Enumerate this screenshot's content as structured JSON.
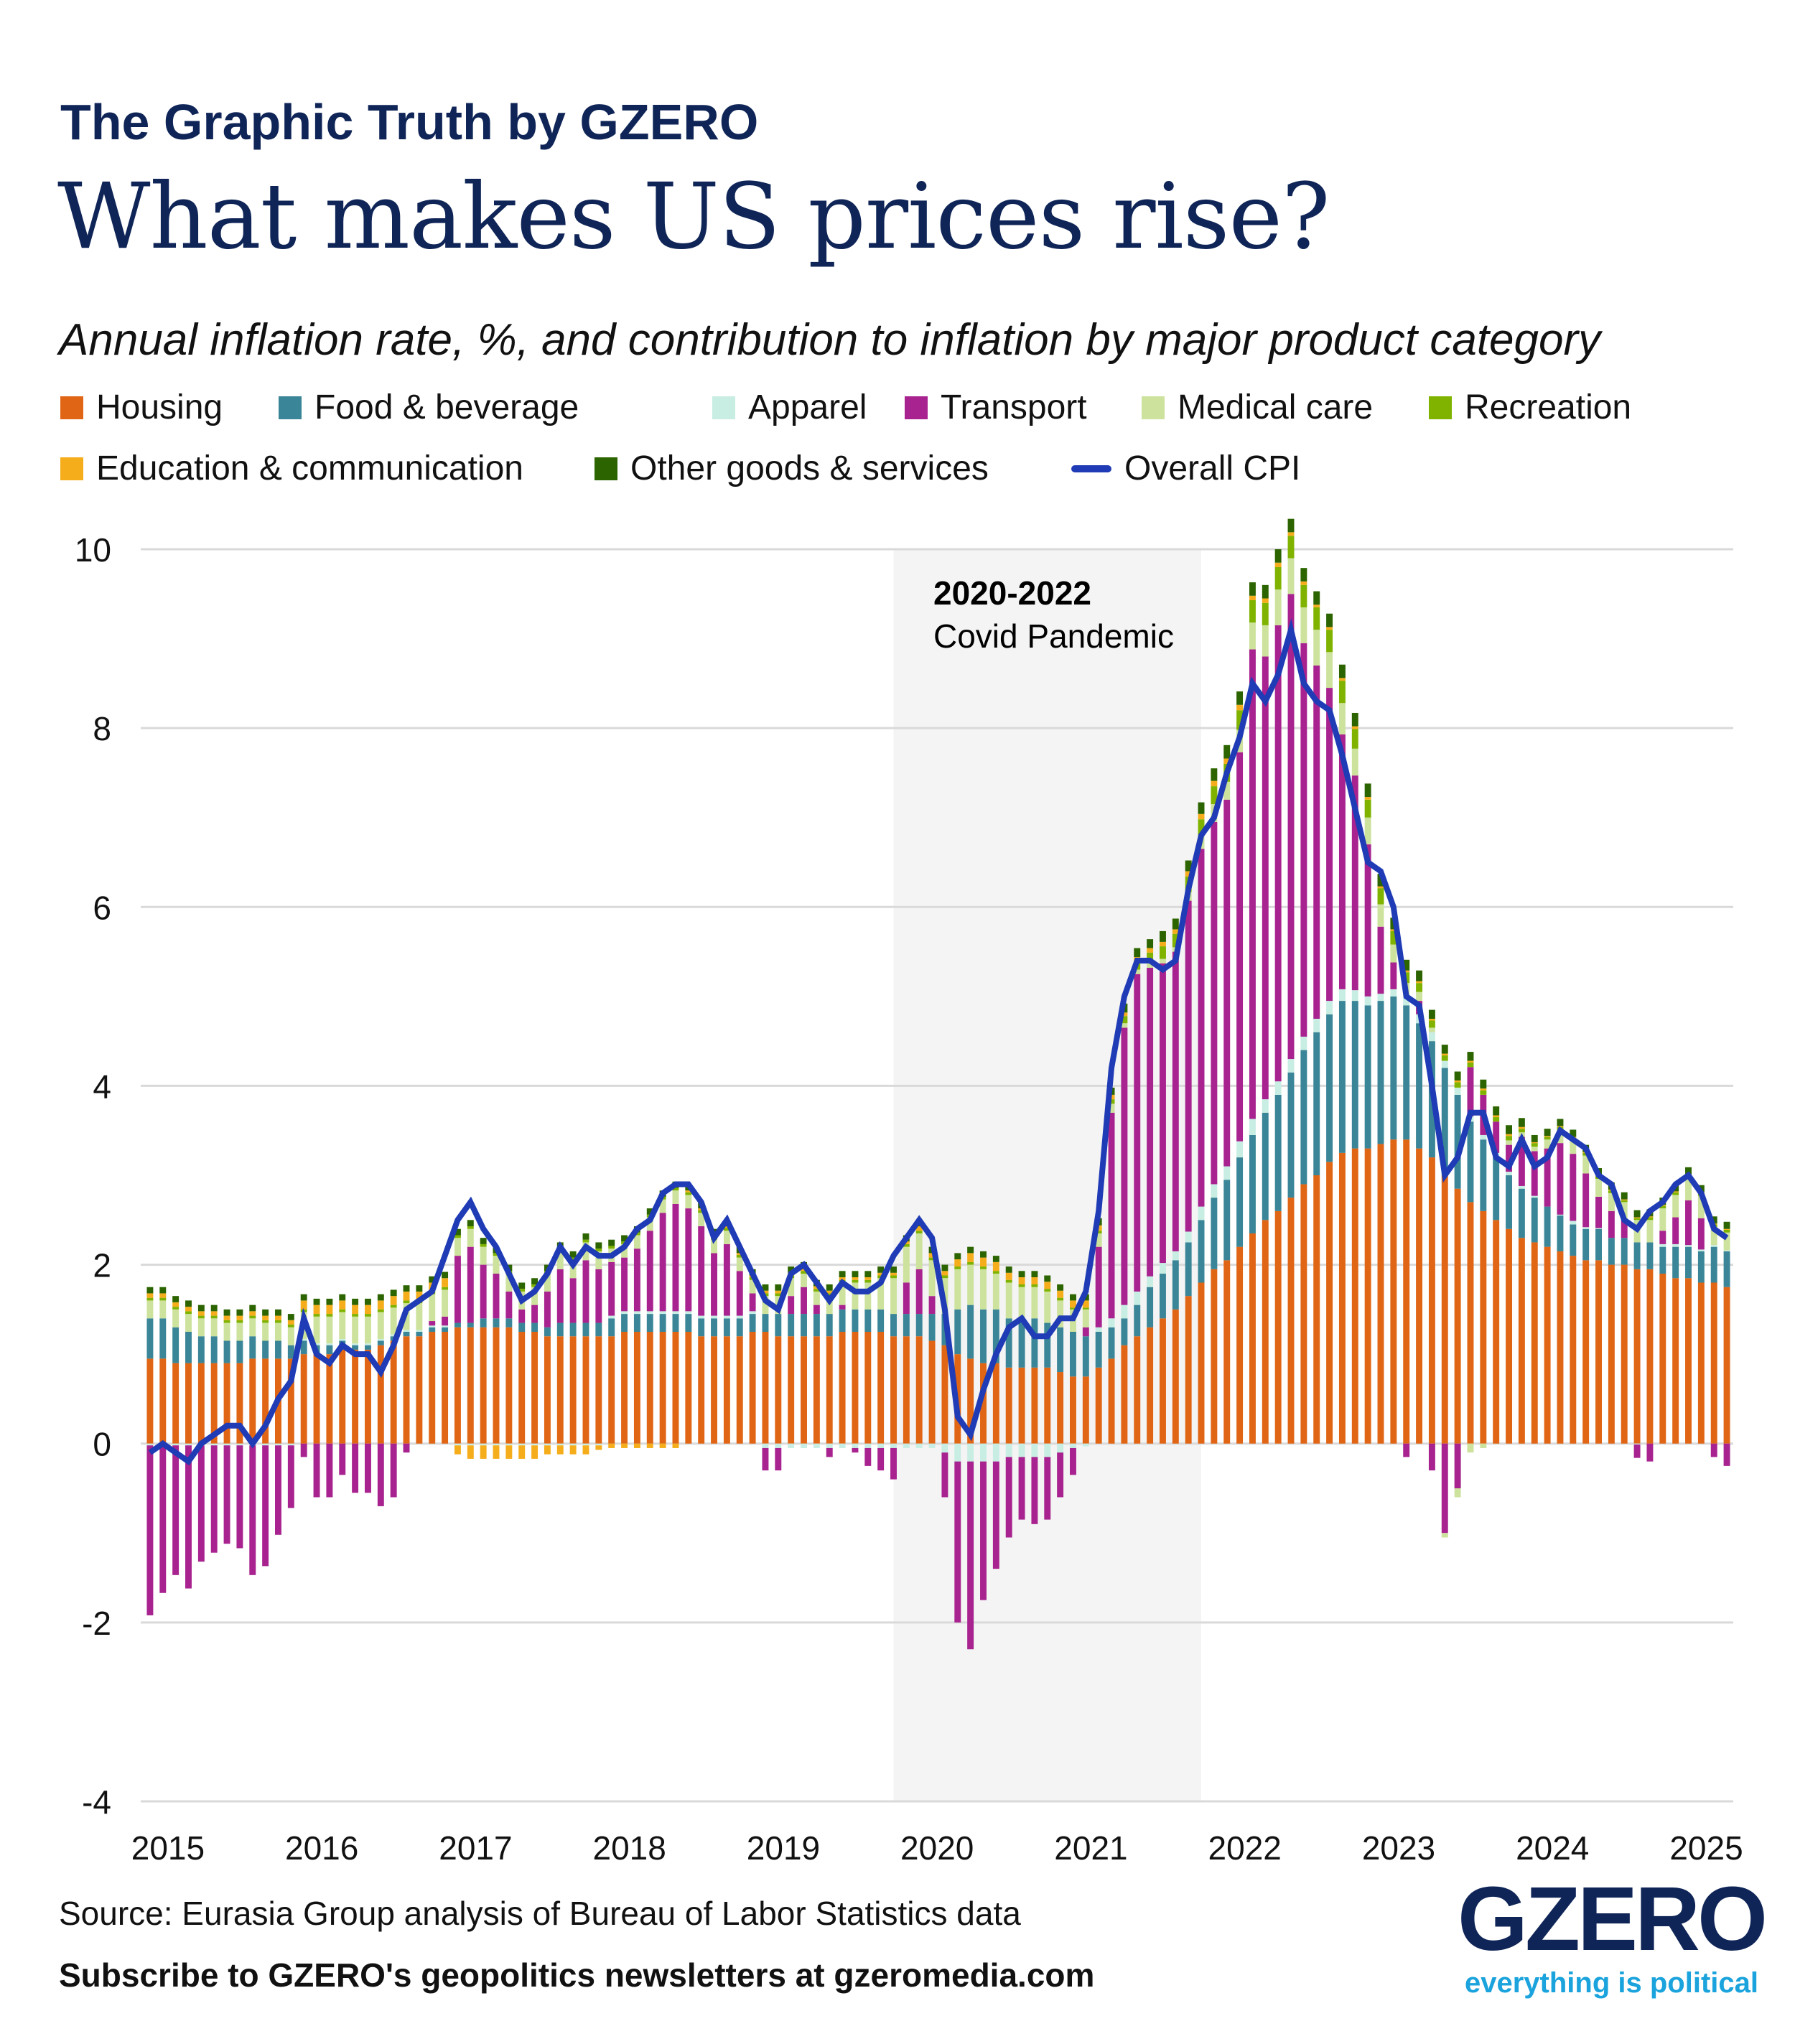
{
  "header": {
    "brand": "The Graphic Truth by GZERO",
    "title": "What makes US prices rise?",
    "subtitle": "Annual inflation rate, %, and contribution to inflation by major product category"
  },
  "footer": {
    "source": "Source: Eurasia Group analysis of Bureau of Labor Statistics data",
    "subscribe": "Subscribe to GZERO's geopolitics newsletters at gzeromedia.com",
    "logo": "GZERO",
    "tagline": "everything is political"
  },
  "chart_data": {
    "type": "bar",
    "stacked": true,
    "title": "What makes US prices rise?",
    "subtitle": "Annual inflation rate, %, and contribution to inflation by major product category",
    "ylim": [
      -4,
      10
    ],
    "yticks": [
      "10",
      "8",
      "6",
      "4",
      "2",
      "0",
      "-2",
      "-4"
    ],
    "ytick_values": [
      10,
      8,
      6,
      4,
      2,
      0,
      -2,
      -4
    ],
    "grid": true,
    "legend": "top",
    "x_start": "2015-01",
    "x_end": "2025-04",
    "xtick_labels": [
      "2015",
      "2016",
      "2017",
      "2018",
      "2019",
      "2020",
      "2021",
      "2022",
      "2023",
      "2024",
      "2025"
    ],
    "annotation": {
      "title": "2020-2022",
      "text": "Covid Pandemic",
      "shade_from": "2020-01",
      "shade_to": "2022-01",
      "shade_color": "#f4f4f4"
    },
    "series": [
      {
        "name": "Housing",
        "color": "#e06514",
        "values": [
          0.95,
          0.95,
          0.9,
          0.9,
          0.9,
          0.9,
          0.9,
          0.9,
          0.95,
          0.95,
          0.95,
          0.95,
          1.0,
          1.0,
          1.0,
          1.05,
          1.05,
          1.05,
          1.1,
          1.15,
          1.2,
          1.2,
          1.25,
          1.25,
          1.3,
          1.3,
          1.3,
          1.3,
          1.3,
          1.25,
          1.25,
          1.2,
          1.2,
          1.2,
          1.2,
          1.2,
          1.2,
          1.25,
          1.25,
          1.25,
          1.25,
          1.25,
          1.25,
          1.2,
          1.2,
          1.2,
          1.2,
          1.25,
          1.25,
          1.2,
          1.2,
          1.2,
          1.2,
          1.2,
          1.25,
          1.25,
          1.25,
          1.25,
          1.2,
          1.2,
          1.2,
          1.15,
          1.1,
          1.0,
          0.95,
          0.9,
          0.9,
          0.85,
          0.85,
          0.85,
          0.85,
          0.8,
          0.75,
          0.75,
          0.85,
          0.95,
          1.1,
          1.2,
          1.3,
          1.4,
          1.5,
          1.65,
          1.8,
          1.95,
          2.05,
          2.2,
          2.35,
          2.5,
          2.6,
          2.75,
          2.9,
          3.0,
          3.15,
          3.25,
          3.3,
          3.3,
          3.35,
          3.4,
          3.4,
          3.3,
          3.2,
          3.0,
          2.85,
          2.7,
          2.6,
          2.5,
          2.4,
          2.3,
          2.25,
          2.2,
          2.15,
          2.1,
          2.05,
          2.05,
          2.0,
          2.0,
          1.95,
          1.95,
          1.9,
          1.85,
          1.85,
          1.8,
          1.8,
          1.75
        ]
      },
      {
        "name": "Food & beverage",
        "color": "#3a8597",
        "values": [
          0.45,
          0.45,
          0.4,
          0.35,
          0.3,
          0.3,
          0.25,
          0.25,
          0.25,
          0.2,
          0.2,
          0.15,
          0.15,
          0.1,
          0.1,
          0.1,
          0.05,
          0.05,
          0.05,
          0.05,
          0.05,
          0.05,
          0.05,
          0.05,
          0.05,
          0.05,
          0.1,
          0.1,
          0.1,
          0.1,
          0.1,
          0.1,
          0.15,
          0.15,
          0.15,
          0.15,
          0.2,
          0.2,
          0.2,
          0.2,
          0.2,
          0.2,
          0.2,
          0.2,
          0.2,
          0.2,
          0.2,
          0.2,
          0.2,
          0.25,
          0.25,
          0.25,
          0.25,
          0.25,
          0.25,
          0.25,
          0.25,
          0.25,
          0.25,
          0.25,
          0.25,
          0.3,
          0.35,
          0.5,
          0.6,
          0.6,
          0.6,
          0.55,
          0.55,
          0.55,
          0.5,
          0.5,
          0.5,
          0.45,
          0.4,
          0.35,
          0.3,
          0.35,
          0.45,
          0.5,
          0.55,
          0.6,
          0.7,
          0.8,
          0.9,
          1.0,
          1.1,
          1.2,
          1.3,
          1.4,
          1.5,
          1.6,
          1.65,
          1.7,
          1.65,
          1.6,
          1.6,
          1.6,
          1.5,
          1.4,
          1.3,
          1.2,
          1.05,
          0.9,
          0.8,
          0.7,
          0.6,
          0.55,
          0.5,
          0.45,
          0.4,
          0.35,
          0.35,
          0.35,
          0.3,
          0.3,
          0.3,
          0.3,
          0.3,
          0.35,
          0.35,
          0.35,
          0.4,
          0.4
        ]
      },
      {
        "name": "Apparel",
        "color": "#c8ede3",
        "values": [
          -0.02,
          -0.02,
          -0.02,
          -0.02,
          -0.02,
          -0.02,
          -0.02,
          -0.02,
          -0.02,
          -0.02,
          -0.02,
          -0.02,
          0.02,
          0.02,
          0.02,
          0.02,
          0.02,
          0.02,
          0.02,
          0.02,
          0.02,
          0.02,
          0.02,
          0.02,
          -0.02,
          -0.02,
          -0.02,
          -0.02,
          -0.02,
          -0.02,
          -0.02,
          -0.02,
          -0.02,
          -0.02,
          -0.02,
          -0.02,
          0.03,
          0.03,
          0.03,
          0.03,
          0.03,
          0.03,
          0.03,
          0.03,
          0.03,
          0.03,
          0.03,
          0.03,
          -0.05,
          -0.05,
          -0.05,
          -0.05,
          -0.05,
          -0.05,
          -0.05,
          -0.05,
          -0.05,
          -0.05,
          -0.05,
          -0.05,
          -0.05,
          -0.05,
          -0.1,
          -0.2,
          -0.2,
          -0.2,
          -0.2,
          -0.15,
          -0.15,
          -0.15,
          -0.15,
          -0.1,
          -0.05,
          -0.03,
          0.05,
          0.1,
          0.15,
          0.15,
          0.12,
          0.12,
          0.1,
          0.12,
          0.15,
          0.15,
          0.15,
          0.18,
          0.18,
          0.15,
          0.15,
          0.15,
          0.15,
          0.15,
          0.15,
          0.13,
          0.12,
          0.1,
          0.08,
          0.08,
          0.1,
          0.1,
          0.1,
          0.08,
          0.08,
          0.06,
          0.05,
          0.05,
          0.04,
          0.03,
          0.02,
          0.0,
          0.01,
          0.04,
          0.02,
          0.01,
          0.0,
          0.0,
          -0.01,
          0.0,
          0.03,
          0.03,
          0.02,
          0.02,
          0.02,
          0.01
        ]
      },
      {
        "name": "Transport",
        "color": "#a8238f",
        "values": [
          -1.9,
          -1.65,
          -1.45,
          -1.6,
          -1.3,
          -1.2,
          -1.1,
          -1.15,
          -1.45,
          -1.35,
          -1.0,
          -0.7,
          -0.15,
          -0.6,
          -0.6,
          -0.35,
          -0.55,
          -0.55,
          -0.7,
          -0.6,
          -0.1,
          0.0,
          0.05,
          0.1,
          0.75,
          0.85,
          0.6,
          0.5,
          0.3,
          0.15,
          0.2,
          0.4,
          0.6,
          0.5,
          0.7,
          0.6,
          0.6,
          0.6,
          0.7,
          0.9,
          1.1,
          1.2,
          1.15,
          1.0,
          0.7,
          0.8,
          0.5,
          0.2,
          -0.25,
          -0.25,
          0.2,
          0.3,
          0.1,
          -0.1,
          0.05,
          -0.05,
          -0.2,
          -0.25,
          -0.35,
          0.35,
          0.5,
          0.2,
          -0.5,
          -1.8,
          -2.1,
          -1.55,
          -1.2,
          -0.9,
          -0.7,
          -0.75,
          -0.7,
          -0.5,
          -0.3,
          0.1,
          0.9,
          2.3,
          3.1,
          3.55,
          3.45,
          3.35,
          3.35,
          3.7,
          4.0,
          4.05,
          4.1,
          4.35,
          5.25,
          4.95,
          5.1,
          5.2,
          4.4,
          3.95,
          3.5,
          2.85,
          2.4,
          1.7,
          0.75,
          0.3,
          -0.15,
          0.15,
          -0.3,
          -1.0,
          -0.5,
          0.55,
          0.45,
          0.35,
          0.3,
          0.55,
          0.5,
          0.65,
          0.8,
          0.75,
          0.6,
          0.35,
          0.3,
          0.2,
          -0.15,
          -0.2,
          0.15,
          0.3,
          0.5,
          0.35,
          -0.15,
          -0.25
        ]
      },
      {
        "name": "Medical care",
        "color": "#cde29d",
        "values": [
          0.2,
          0.2,
          0.2,
          0.2,
          0.2,
          0.2,
          0.2,
          0.2,
          0.2,
          0.2,
          0.2,
          0.2,
          0.3,
          0.3,
          0.3,
          0.3,
          0.3,
          0.3,
          0.3,
          0.3,
          0.3,
          0.3,
          0.3,
          0.3,
          0.2,
          0.2,
          0.2,
          0.2,
          0.2,
          0.2,
          0.2,
          0.2,
          0.2,
          0.2,
          0.2,
          0.2,
          0.15,
          0.15,
          0.15,
          0.15,
          0.15,
          0.15,
          0.15,
          0.15,
          0.15,
          0.15,
          0.15,
          0.15,
          0.2,
          0.2,
          0.2,
          0.15,
          0.15,
          0.2,
          0.25,
          0.3,
          0.3,
          0.35,
          0.4,
          0.4,
          0.4,
          0.4,
          0.4,
          0.45,
          0.45,
          0.45,
          0.4,
          0.4,
          0.35,
          0.35,
          0.35,
          0.3,
          0.25,
          0.2,
          0.15,
          0.1,
          0.05,
          0.05,
          0.05,
          0.05,
          0.05,
          0.1,
          0.15,
          0.2,
          0.2,
          0.25,
          0.3,
          0.35,
          0.4,
          0.4,
          0.4,
          0.4,
          0.4,
          0.35,
          0.3,
          0.3,
          0.25,
          0.2,
          0.15,
          0.1,
          0.05,
          -0.05,
          -0.1,
          -0.1,
          -0.05,
          0.0,
          0.05,
          0.05,
          0.05,
          0.1,
          0.15,
          0.15,
          0.2,
          0.2,
          0.2,
          0.2,
          0.25,
          0.25,
          0.25,
          0.25,
          0.25,
          0.25,
          0.2,
          0.2
        ]
      },
      {
        "name": "Recreation",
        "color": "#7fb300",
        "values": [
          0.03,
          0.03,
          0.03,
          0.03,
          0.03,
          0.03,
          0.03,
          0.03,
          0.03,
          0.03,
          0.03,
          0.03,
          0.03,
          0.03,
          0.03,
          0.03,
          0.03,
          0.03,
          0.03,
          0.03,
          0.03,
          0.03,
          0.03,
          0.03,
          0.03,
          0.03,
          0.03,
          0.03,
          0.03,
          0.03,
          0.03,
          0.03,
          0.03,
          0.03,
          0.03,
          0.03,
          0.03,
          0.03,
          0.03,
          0.03,
          0.03,
          0.03,
          0.03,
          0.03,
          0.03,
          0.03,
          0.03,
          0.03,
          0.03,
          0.03,
          0.03,
          0.03,
          0.03,
          0.03,
          0.03,
          0.03,
          0.03,
          0.03,
          0.03,
          0.03,
          0.03,
          0.03,
          0.03,
          0.03,
          0.03,
          0.03,
          0.03,
          0.03,
          0.03,
          0.03,
          0.03,
          0.03,
          0.02,
          0.02,
          0.03,
          0.05,
          0.08,
          0.1,
          0.12,
          0.14,
          0.15,
          0.17,
          0.18,
          0.2,
          0.2,
          0.22,
          0.25,
          0.25,
          0.25,
          0.25,
          0.25,
          0.25,
          0.25,
          0.25,
          0.22,
          0.2,
          0.18,
          0.15,
          0.12,
          0.1,
          0.08,
          0.06,
          0.06,
          0.05,
          0.05,
          0.05,
          0.05,
          0.04,
          0.04,
          0.03,
          0.03,
          0.03,
          0.03,
          0.03,
          0.03,
          0.02,
          0.02,
          0.03,
          0.03,
          0.03,
          0.03,
          0.03,
          0.03,
          0.03
        ]
      },
      {
        "name": "Education & communication",
        "color": "#f5ad1b",
        "values": [
          0.05,
          0.05,
          0.05,
          0.05,
          0.05,
          0.05,
          0.05,
          0.05,
          0.05,
          0.05,
          0.05,
          0.05,
          0.1,
          0.1,
          0.1,
          0.1,
          0.1,
          0.1,
          0.1,
          0.1,
          0.1,
          0.1,
          0.1,
          0.1,
          -0.1,
          -0.15,
          -0.15,
          -0.15,
          -0.15,
          -0.15,
          -0.15,
          -0.1,
          -0.1,
          -0.1,
          -0.1,
          -0.05,
          -0.05,
          -0.05,
          -0.05,
          -0.05,
          -0.05,
          -0.05,
          0.02,
          0.02,
          0.02,
          0.02,
          0.02,
          0.02,
          0.03,
          0.03,
          0.03,
          0.03,
          0.03,
          0.03,
          0.03,
          0.03,
          0.03,
          0.03,
          0.03,
          0.03,
          0.05,
          0.05,
          0.05,
          0.08,
          0.1,
          0.1,
          0.1,
          0.08,
          0.08,
          0.08,
          0.08,
          0.08,
          0.08,
          0.08,
          0.06,
          0.05,
          0.04,
          0.04,
          0.05,
          0.05,
          0.05,
          0.06,
          0.06,
          0.06,
          0.06,
          0.06,
          0.05,
          0.05,
          0.05,
          0.04,
          0.04,
          0.03,
          0.03,
          0.03,
          0.03,
          0.03,
          0.02,
          0.02,
          0.02,
          0.02,
          0.02,
          0.02,
          0.02,
          0.02,
          0.02,
          0.02,
          0.02,
          0.02,
          0.01,
          0.01,
          0.01,
          0.01,
          0.01,
          0.01,
          0.01,
          0.01,
          0.01,
          0.01,
          0.01,
          0.01,
          0.01,
          0.01,
          0.01,
          0.01
        ]
      },
      {
        "name": "Other goods & services",
        "color": "#2c6400",
        "values": [
          0.07,
          0.07,
          0.07,
          0.07,
          0.07,
          0.07,
          0.07,
          0.07,
          0.07,
          0.07,
          0.07,
          0.07,
          0.07,
          0.07,
          0.07,
          0.07,
          0.07,
          0.07,
          0.07,
          0.07,
          0.07,
          0.07,
          0.07,
          0.07,
          0.07,
          0.07,
          0.07,
          0.07,
          0.07,
          0.07,
          0.07,
          0.07,
          0.07,
          0.07,
          0.07,
          0.07,
          0.07,
          0.07,
          0.07,
          0.07,
          0.07,
          0.07,
          0.07,
          0.07,
          0.07,
          0.07,
          0.07,
          0.07,
          0.07,
          0.07,
          0.07,
          0.07,
          0.07,
          0.07,
          0.07,
          0.07,
          0.07,
          0.07,
          0.07,
          0.07,
          0.07,
          0.07,
          0.07,
          0.07,
          0.07,
          0.07,
          0.07,
          0.07,
          0.07,
          0.07,
          0.07,
          0.07,
          0.07,
          0.07,
          0.08,
          0.08,
          0.1,
          0.1,
          0.1,
          0.12,
          0.12,
          0.12,
          0.13,
          0.14,
          0.15,
          0.15,
          0.15,
          0.15,
          0.15,
          0.15,
          0.15,
          0.15,
          0.15,
          0.15,
          0.15,
          0.15,
          0.14,
          0.13,
          0.12,
          0.12,
          0.1,
          0.1,
          0.1,
          0.1,
          0.1,
          0.1,
          0.1,
          0.1,
          0.08,
          0.08,
          0.08,
          0.08,
          0.08,
          0.08,
          0.08,
          0.08,
          0.08,
          0.08,
          0.08,
          0.08,
          0.08,
          0.08,
          0.08,
          0.08
        ]
      }
    ],
    "line": {
      "name": "Overall CPI",
      "color": "#1f3bb5",
      "values": [
        -0.1,
        0.0,
        -0.1,
        -0.2,
        0.0,
        0.1,
        0.2,
        0.2,
        0.0,
        0.2,
        0.5,
        0.7,
        1.4,
        1.0,
        0.9,
        1.1,
        1.0,
        1.0,
        0.8,
        1.1,
        1.5,
        1.6,
        1.7,
        2.1,
        2.5,
        2.7,
        2.4,
        2.2,
        1.9,
        1.6,
        1.7,
        1.9,
        2.2,
        2.0,
        2.2,
        2.1,
        2.1,
        2.2,
        2.4,
        2.5,
        2.8,
        2.9,
        2.9,
        2.7,
        2.3,
        2.5,
        2.2,
        1.9,
        1.6,
        1.5,
        1.9,
        2.0,
        1.8,
        1.6,
        1.8,
        1.7,
        1.7,
        1.8,
        2.1,
        2.3,
        2.5,
        2.3,
        1.5,
        0.3,
        0.1,
        0.6,
        1.0,
        1.3,
        1.4,
        1.2,
        1.2,
        1.4,
        1.4,
        1.7,
        2.6,
        4.2,
        5.0,
        5.4,
        5.4,
        5.3,
        5.4,
        6.2,
        6.8,
        7.0,
        7.5,
        7.9,
        8.5,
        8.3,
        8.6,
        9.1,
        8.5,
        8.3,
        8.2,
        7.7,
        7.1,
        6.5,
        6.4,
        6.0,
        5.0,
        4.9,
        4.0,
        3.0,
        3.2,
        3.7,
        3.7,
        3.2,
        3.1,
        3.4,
        3.1,
        3.2,
        3.5,
        3.4,
        3.3,
        3.0,
        2.9,
        2.5,
        2.4,
        2.6,
        2.7,
        2.9,
        3.0,
        2.8,
        2.4,
        2.3
      ]
    }
  }
}
